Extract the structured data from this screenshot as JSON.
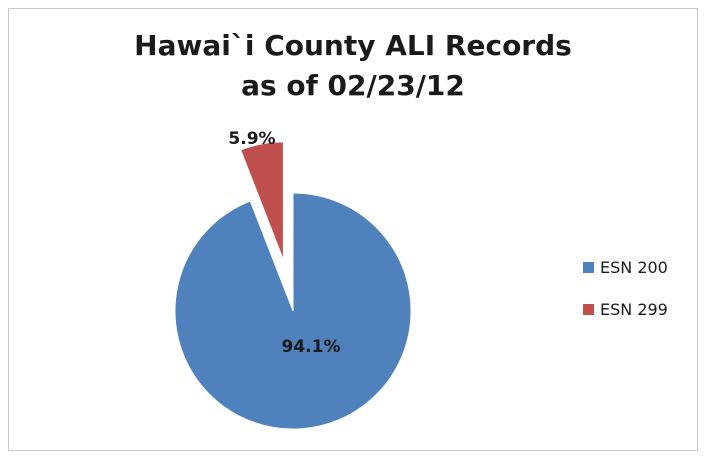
{
  "chart_data": {
    "type": "pie",
    "title_line1": "Hawai`i County ALI Records",
    "title_line2": "as of 02/23/12",
    "slices": [
      {
        "label": "ESN 200",
        "value": 94.1,
        "display": "94.1%",
        "color": "#4F81BD"
      },
      {
        "label": "ESN 299",
        "value": 5.9,
        "display": "5.9%",
        "color": "#C0504D",
        "exploded": true
      }
    ],
    "legend_position": "right"
  }
}
